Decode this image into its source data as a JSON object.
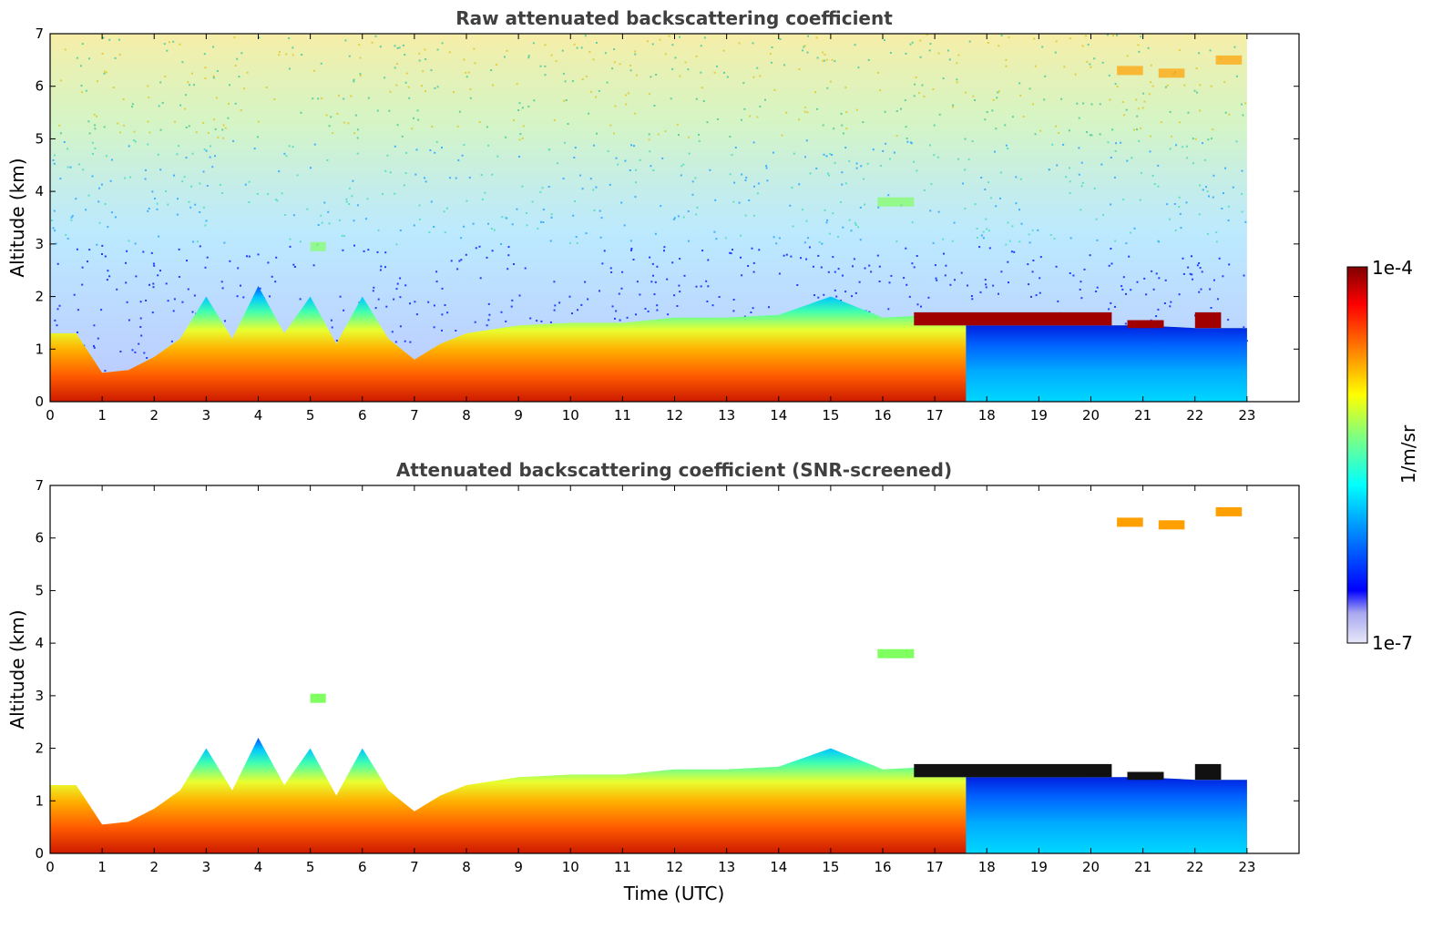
{
  "chart_data": [
    {
      "type": "heatmap",
      "title": "Raw attenuated backscattering coefficient",
      "xlabel": "",
      "ylabel": "Altitude (km)",
      "xlim": [
        0,
        24
      ],
      "ylim": [
        0,
        7
      ],
      "xticks": [
        "0",
        "1",
        "2",
        "3",
        "4",
        "5",
        "6",
        "7",
        "8",
        "9",
        "10",
        "11",
        "12",
        "13",
        "14",
        "15",
        "16",
        "17",
        "18",
        "19",
        "20",
        "21",
        "22",
        "23"
      ],
      "yticks": [
        "0",
        "1",
        "2",
        "3",
        "4",
        "5",
        "6",
        "7"
      ],
      "data_end_time": 23,
      "boundary_layer_top_km": [
        {
          "t": 0,
          "h": 1.3
        },
        {
          "t": 0.5,
          "h": 1.3
        },
        {
          "t": 1,
          "h": 0.55
        },
        {
          "t": 1.5,
          "h": 0.6
        },
        {
          "t": 2,
          "h": 0.85
        },
        {
          "t": 2.5,
          "h": 1.2
        },
        {
          "t": 3,
          "h": 2.0
        },
        {
          "t": 3.5,
          "h": 1.2
        },
        {
          "t": 4,
          "h": 2.2
        },
        {
          "t": 4.5,
          "h": 1.3
        },
        {
          "t": 5,
          "h": 2.0
        },
        {
          "t": 5.5,
          "h": 1.1
        },
        {
          "t": 6,
          "h": 2.0
        },
        {
          "t": 6.5,
          "h": 1.2
        },
        {
          "t": 7,
          "h": 0.8
        },
        {
          "t": 7.5,
          "h": 1.1
        },
        {
          "t": 8,
          "h": 1.3
        },
        {
          "t": 9,
          "h": 1.45
        },
        {
          "t": 10,
          "h": 1.5
        },
        {
          "t": 11,
          "h": 1.5
        },
        {
          "t": 12,
          "h": 1.6
        },
        {
          "t": 13,
          "h": 1.6
        },
        {
          "t": 14,
          "h": 1.65
        },
        {
          "t": 15,
          "h": 2.0
        },
        {
          "t": 16,
          "h": 1.6
        },
        {
          "t": 17,
          "h": 1.65
        },
        {
          "t": 18,
          "h": 1.6
        },
        {
          "t": 19,
          "h": 1.5
        },
        {
          "t": 20,
          "h": 1.45
        },
        {
          "t": 21,
          "h": 1.45
        },
        {
          "t": 22,
          "h": 1.4
        },
        {
          "t": 23,
          "h": 1.4
        }
      ],
      "cloud_layers": [
        {
          "t_start": 16.6,
          "t_end": 20.4,
          "h_bottom": 1.45,
          "h_top": 1.7,
          "level": "1e-4"
        },
        {
          "t_start": 20.7,
          "t_end": 21.4,
          "h_bottom": 1.4,
          "h_top": 1.55,
          "level": "1e-4"
        },
        {
          "t_start": 22.0,
          "t_end": 22.5,
          "h_bottom": 1.4,
          "h_top": 1.7,
          "level": "1e-4"
        }
      ],
      "upper_features": [
        {
          "t_start": 5.0,
          "t_end": 5.3,
          "h": 2.95
        },
        {
          "t_start": 15.9,
          "t_end": 16.6,
          "h": 3.8
        },
        {
          "t_start": 20.5,
          "t_end": 21.0,
          "h": 6.3
        },
        {
          "t_start": 21.3,
          "t_end": 21.8,
          "h": 6.25
        },
        {
          "t_start": 22.4,
          "t_end": 22.9,
          "h": 6.5
        }
      ]
    },
    {
      "type": "heatmap",
      "title": "Attenuated backscattering coefficient (SNR-screened)",
      "xlabel": "Time (UTC)",
      "ylabel": "Altitude (km)",
      "xlim": [
        0,
        24
      ],
      "ylim": [
        0,
        7
      ],
      "xticks": [
        "0",
        "1",
        "2",
        "3",
        "4",
        "5",
        "6",
        "7",
        "8",
        "9",
        "10",
        "11",
        "12",
        "13",
        "14",
        "15",
        "16",
        "17",
        "18",
        "19",
        "20",
        "21",
        "22",
        "23"
      ],
      "yticks": [
        "0",
        "1",
        "2",
        "3",
        "4",
        "5",
        "6",
        "7"
      ],
      "data_end_time": 23
    }
  ],
  "colorbar": {
    "label": "1/m/sr",
    "max_label": "1e-4",
    "min_label": "1e-7",
    "scale": "log",
    "colormap": "jet",
    "colors": [
      "#e8e8f8",
      "#0000ff",
      "#00a0ff",
      "#00ffff",
      "#80ff80",
      "#ffff00",
      "#ff8000",
      "#ff0000",
      "#800000"
    ]
  }
}
